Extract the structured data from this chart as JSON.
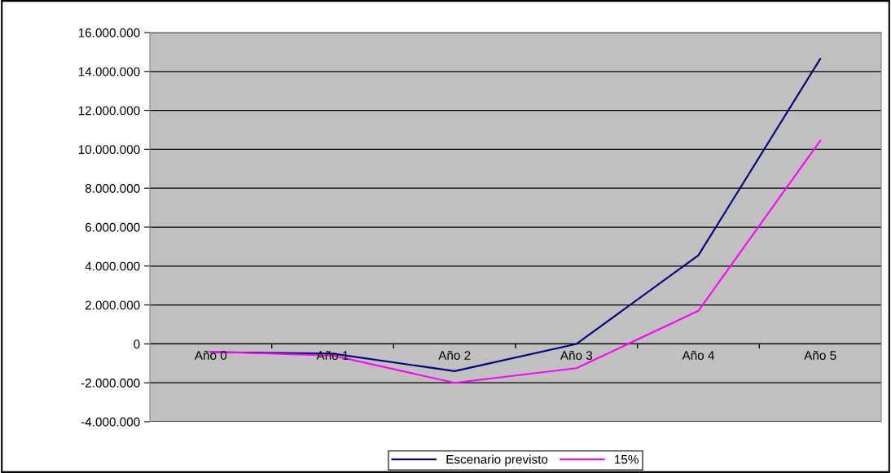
{
  "chart_data": {
    "type": "line",
    "categories": [
      "Año 0",
      "Año 1",
      "Año 2",
      "Año 3",
      "Año 4",
      "Año 5"
    ],
    "series": [
      {
        "name": "Escenario previsto",
        "color": "#000080",
        "values": [
          -420000,
          -500000,
          -1400000,
          0,
          4550000,
          14650000
        ]
      },
      {
        "name": "15%",
        "color": "#ff00ff",
        "values": [
          -400000,
          -600000,
          -2000000,
          -1250000,
          1700000,
          10450000
        ]
      }
    ],
    "ylim": [
      -4000000,
      16000000
    ],
    "yticks": [
      {
        "value": -4000000,
        "label": "-4.000.000"
      },
      {
        "value": -2000000,
        "label": "-2.000.000"
      },
      0,
      {
        "value": 2000000,
        "label": "2.000.000"
      },
      {
        "value": 4000000,
        "label": "4.000.000"
      },
      {
        "value": 6000000,
        "label": "6.000.000"
      },
      {
        "value": 8000000,
        "label": "8.000.000"
      },
      {
        "value": 10000000,
        "label": "10.000.000"
      },
      {
        "value": 12000000,
        "label": "12.000.000"
      },
      {
        "value": 14000000,
        "label": "14.000.000"
      },
      {
        "value": 16000000,
        "label": "16.000.000"
      }
    ],
    "grid": "y",
    "legend": "bottom",
    "marker": "none",
    "line_style": "solid"
  }
}
